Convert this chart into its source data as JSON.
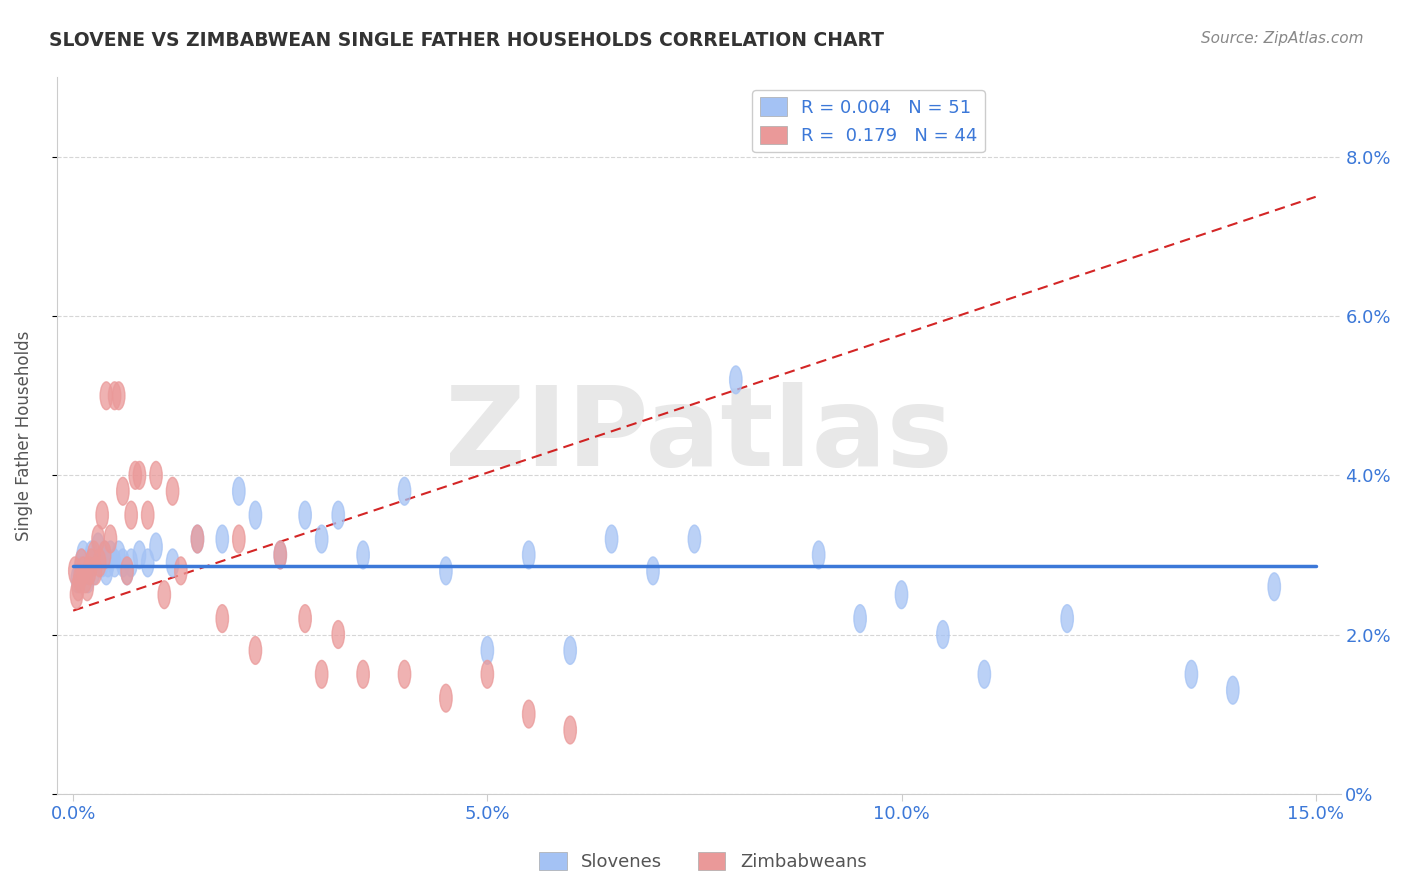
{
  "title": "SLOVENE VS ZIMBABWEAN SINGLE FATHER HOUSEHOLDS CORRELATION CHART",
  "source": "Source: ZipAtlas.com",
  "ylabel": "Single Father Households",
  "xlim": [
    0.0,
    15.0
  ],
  "ylim": [
    0.0,
    9.0
  ],
  "ytick_vals": [
    0.0,
    2.0,
    4.0,
    6.0,
    8.0
  ],
  "xtick_vals": [
    0.0,
    5.0,
    10.0,
    15.0
  ],
  "slovene_R": "0.004",
  "slovene_N": "51",
  "zimbabwe_R": "0.179",
  "zimbabwe_N": "44",
  "slovene_color": "#a4c2f4",
  "zimbabwe_color": "#ea9999",
  "slovene_line_color": "#3c78d8",
  "zimbabwe_line_color": "#cc0000",
  "slovene_x": [
    0.05,
    0.08,
    0.1,
    0.12,
    0.15,
    0.18,
    0.2,
    0.22,
    0.25,
    0.3,
    0.35,
    0.38,
    0.4,
    0.42,
    0.45,
    0.5,
    0.55,
    0.6,
    0.65,
    0.7,
    0.8,
    0.9,
    1.0,
    1.2,
    1.5,
    1.8,
    2.0,
    2.2,
    2.5,
    2.8,
    3.0,
    3.2,
    3.5,
    4.0,
    4.5,
    5.0,
    5.5,
    6.0,
    6.5,
    7.0,
    7.5,
    8.0,
    9.0,
    9.5,
    10.0,
    10.5,
    11.0,
    12.0,
    13.5,
    14.0,
    14.5
  ],
  "slovene_y": [
    2.7,
    2.8,
    2.9,
    3.0,
    2.8,
    2.7,
    2.9,
    3.0,
    2.8,
    3.1,
    2.9,
    3.0,
    2.8,
    2.9,
    3.0,
    2.9,
    3.0,
    2.9,
    2.8,
    2.9,
    3.0,
    2.9,
    3.1,
    2.9,
    3.2,
    3.2,
    3.8,
    3.5,
    3.0,
    3.5,
    3.2,
    3.5,
    3.0,
    3.8,
    2.8,
    1.8,
    3.0,
    1.8,
    3.2,
    2.8,
    3.2,
    5.2,
    3.0,
    2.2,
    2.5,
    2.0,
    1.5,
    2.2,
    1.5,
    1.3,
    2.6
  ],
  "zimbabwe_x": [
    0.02,
    0.04,
    0.06,
    0.08,
    0.1,
    0.12,
    0.15,
    0.17,
    0.2,
    0.22,
    0.25,
    0.27,
    0.3,
    0.32,
    0.35,
    0.38,
    0.4,
    0.45,
    0.5,
    0.55,
    0.6,
    0.65,
    0.7,
    0.75,
    0.8,
    0.9,
    1.0,
    1.1,
    1.2,
    1.3,
    1.5,
    1.8,
    2.0,
    2.2,
    2.5,
    2.8,
    3.0,
    3.2,
    3.5,
    4.0,
    4.5,
    5.0,
    5.5,
    6.0
  ],
  "zimbabwe_y": [
    2.8,
    2.5,
    2.6,
    2.7,
    2.9,
    2.8,
    2.7,
    2.6,
    2.8,
    2.9,
    3.0,
    2.8,
    3.2,
    2.9,
    3.5,
    3.0,
    5.0,
    3.2,
    5.0,
    5.0,
    3.8,
    2.8,
    3.5,
    4.0,
    4.0,
    3.5,
    4.0,
    2.5,
    3.8,
    2.8,
    3.2,
    2.2,
    3.2,
    1.8,
    3.0,
    2.2,
    1.5,
    2.0,
    1.5,
    1.5,
    1.2,
    1.5,
    1.0,
    0.8
  ],
  "background_color": "#ffffff",
  "grid_color": "#cccccc",
  "watermark_text": "ZIPatlas",
  "watermark_color": "#e8e8e8"
}
